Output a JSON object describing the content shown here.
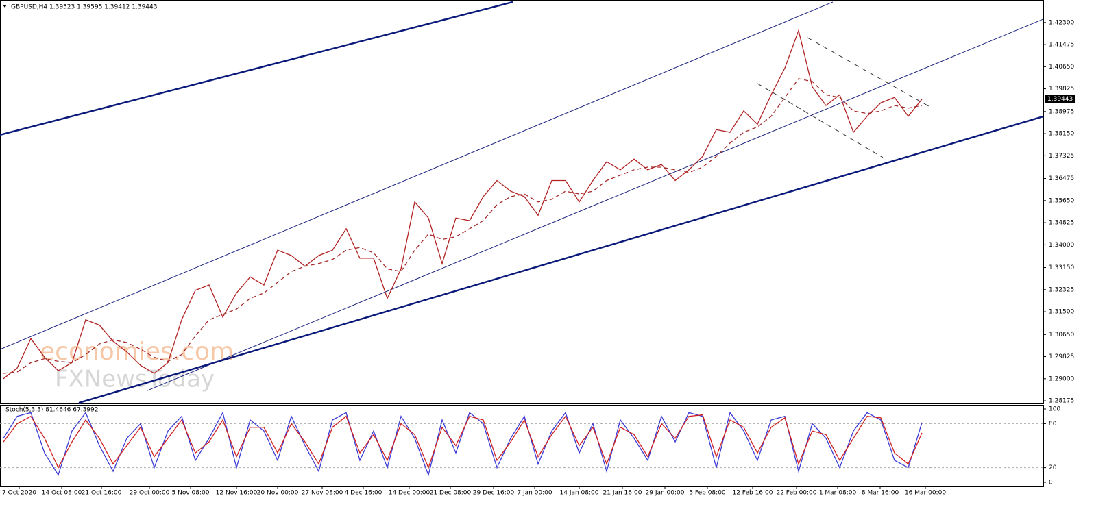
{
  "chart_data": [
    {
      "type": "line",
      "title": "GBPUSD,H4  1.39523 1.39595 1.39412 1.39443",
      "watermark": [
        "economies.com",
        "FXNewsToday"
      ],
      "xlim": [
        -0.25,
        75.85
      ],
      "ylim": [
        1.281,
        1.4314
      ],
      "yticks": [
        {
          "value": 1.423,
          "label": "1.42300"
        },
        {
          "value": 1.41475,
          "label": "1.41475"
        },
        {
          "value": 1.4065,
          "label": "1.40650"
        },
        {
          "value": 1.39825,
          "label": "1.39825"
        },
        {
          "value": 1.38975,
          "label": "1.38975"
        },
        {
          "value": 1.3815,
          "label": "1.38150"
        },
        {
          "value": 1.37325,
          "label": "1.37325"
        },
        {
          "value": 1.36475,
          "label": "1.36475"
        },
        {
          "value": 1.3565,
          "label": "1.35650"
        },
        {
          "value": 1.34825,
          "label": "1.34825"
        },
        {
          "value": 1.34,
          "label": "1.34000"
        },
        {
          "value": 1.3315,
          "label": "1.33150"
        },
        {
          "value": 1.32325,
          "label": "1.32325"
        },
        {
          "value": 1.315,
          "label": "1.31500"
        },
        {
          "value": 1.3065,
          "label": "1.30650"
        },
        {
          "value": 1.29825,
          "label": "1.29825"
        },
        {
          "value": 1.29,
          "label": "1.29000"
        },
        {
          "value": 1.28175,
          "label": "1.28175"
        }
      ],
      "current_price": {
        "value": 1.39443,
        "label": "1.39443"
      },
      "series": [
        {
          "color": "#b22222",
          "dash": false,
          "values": [
            1.29,
            1.294,
            1.305,
            1.298,
            1.293,
            1.296,
            1.312,
            1.31,
            1.304,
            1.3,
            1.295,
            1.292,
            1.296,
            1.312,
            1.323,
            1.325,
            1.313,
            1.322,
            1.328,
            1.325,
            1.338,
            1.336,
            1.332,
            1.336,
            1.338,
            1.346,
            1.335,
            1.335,
            1.32,
            1.331,
            1.356,
            1.35,
            1.333,
            1.35,
            1.349,
            1.358,
            1.364,
            1.36,
            1.358,
            1.351,
            1.364,
            1.364,
            1.356,
            1.364,
            1.371,
            1.368,
            1.372,
            1.368,
            1.37,
            1.364,
            1.368,
            1.373,
            1.383,
            1.382,
            1.39,
            1.385,
            1.396,
            1.406,
            1.42,
            1.399,
            1.392,
            1.396,
            1.382,
            1.388,
            1.393,
            1.395,
            1.388,
            1.3944
          ]
        },
        {
          "color": "#a52a2a",
          "dash": true,
          "values": [
            1.292,
            1.2925,
            1.296,
            1.2975,
            1.2965,
            1.296,
            1.299,
            1.303,
            1.3045,
            1.3035,
            1.301,
            1.298,
            1.2965,
            1.299,
            1.306,
            1.312,
            1.314,
            1.316,
            1.32,
            1.322,
            1.326,
            1.33,
            1.332,
            1.333,
            1.3345,
            1.338,
            1.339,
            1.337,
            1.331,
            1.33,
            1.338,
            1.344,
            1.342,
            1.343,
            1.346,
            1.349,
            1.355,
            1.358,
            1.359,
            1.356,
            1.357,
            1.36,
            1.359,
            1.36,
            1.364,
            1.366,
            1.368,
            1.369,
            1.369,
            1.368,
            1.367,
            1.369,
            1.373,
            1.378,
            1.382,
            1.384,
            1.388,
            1.395,
            1.402,
            1.401,
            1.396,
            1.395,
            1.39,
            1.389,
            1.39,
            1.392,
            1.391,
            1.392
          ]
        }
      ],
      "lines": [
        {
          "x": [
            -0.25,
            37.15
          ],
          "y": [
            1.38103,
            1.43067
          ],
          "color": "#0b1a7a",
          "width": 2.5,
          "dash": false
        },
        {
          "x": [
            5.5,
            75.85
          ],
          "y": [
            1.28098,
            1.38794
          ],
          "color": "#0b1a7a",
          "width": 2.5,
          "dash": false
        },
        {
          "x": [
            -0.25,
            60.5
          ],
          "y": [
            1.30094,
            1.43067
          ],
          "color": "#1a237e",
          "width": 1,
          "dash": false
        },
        {
          "x": [
            10.5,
            75.85
          ],
          "y": [
            1.28559,
            1.42427
          ],
          "color": "#1a237e",
          "width": 1,
          "dash": false
        },
        {
          "x": [
            58.65,
            67.75
          ],
          "y": [
            1.41737,
            1.39101
          ],
          "color": "#333",
          "width": 1,
          "dash": true
        },
        {
          "x": [
            55,
            64.15
          ],
          "y": [
            1.40022,
            1.37259
          ],
          "color": "#333",
          "width": 1,
          "dash": true
        }
      ]
    },
    {
      "type": "line",
      "title": "Stoch(5,3,3) 81.4646 67.3992",
      "xlim": [
        -0.25,
        75.85
      ],
      "ylim": [
        -5.6,
        105.6
      ],
      "yticks": [
        0,
        20,
        80,
        100
      ],
      "xticks": [
        {
          "value": 1.15,
          "label": "7 Oct 2020"
        },
        {
          "value": 4.25,
          "label": "14 Oct 08:00"
        },
        {
          "value": 7.15,
          "label": "21 Oct 16:00"
        },
        {
          "value": 10.65,
          "label": "29 Oct 00:00"
        },
        {
          "value": 13.65,
          "label": "5 Nov 08:00"
        },
        {
          "value": 17,
          "label": "12 Nov 16:00"
        },
        {
          "value": 20,
          "label": "20 Nov 00:00"
        },
        {
          "value": 23.25,
          "label": "27 Nov 08:00"
        },
        {
          "value": 26.25,
          "label": "4 Dec 16:00"
        },
        {
          "value": 29.6,
          "label": "14 Dec 00:00"
        },
        {
          "value": 32.6,
          "label": "21 Dec 08:00"
        },
        {
          "value": 35.75,
          "label": "29 Dec 16:00"
        },
        {
          "value": 38.75,
          "label": "7 Jan 00:00"
        },
        {
          "value": 42,
          "label": "14 Jan 08:00"
        },
        {
          "value": 45.15,
          "label": "21 Jan 16:00"
        },
        {
          "value": 48.25,
          "label": "29 Jan 00:00"
        },
        {
          "value": 51.35,
          "label": "5 Feb 08:00"
        },
        {
          "value": 54.65,
          "label": "12 Feb 16:00"
        },
        {
          "value": 57.85,
          "label": "22 Feb 00:00"
        },
        {
          "value": 60.85,
          "label": "1 Mar 08:00"
        },
        {
          "value": 63.95,
          "label": "8 Mar 16:00"
        },
        {
          "value": 67.25,
          "label": "16 Mar 00:00"
        }
      ],
      "series": [
        {
          "color": "#3b3bd6",
          "dash": false,
          "values": [
            60,
            90,
            95,
            40,
            10,
            70,
            95,
            50,
            15,
            60,
            80,
            20,
            70,
            90,
            30,
            60,
            95,
            20,
            85,
            70,
            30,
            90,
            50,
            15,
            85,
            95,
            30,
            70,
            20,
            90,
            60,
            10,
            85,
            40,
            95,
            80,
            20,
            60,
            90,
            25,
            70,
            95,
            40,
            80,
            15,
            85,
            60,
            30,
            90,
            55,
            95,
            90,
            20,
            95,
            70,
            30,
            85,
            90,
            15,
            80,
            60,
            20,
            70,
            95,
            85,
            30,
            20,
            81.4646
          ]
        },
        {
          "color": "#d02020",
          "dash": false,
          "values": [
            55,
            80,
            90,
            60,
            20,
            55,
            85,
            60,
            25,
            50,
            75,
            35,
            60,
            85,
            40,
            55,
            85,
            35,
            75,
            75,
            40,
            80,
            55,
            25,
            75,
            90,
            40,
            65,
            30,
            80,
            65,
            20,
            75,
            50,
            90,
            85,
            30,
            55,
            85,
            35,
            65,
            90,
            50,
            75,
            25,
            75,
            65,
            35,
            80,
            60,
            90,
            92,
            35,
            85,
            75,
            40,
            75,
            88,
            25,
            70,
            65,
            30,
            60,
            90,
            88,
            40,
            25,
            67.3992
          ]
        }
      ]
    }
  ]
}
